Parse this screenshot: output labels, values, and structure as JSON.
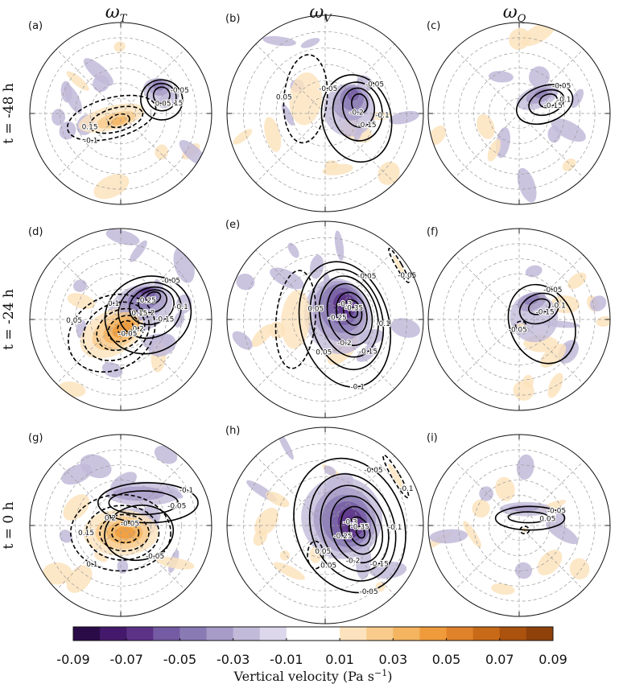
{
  "chart_data": {
    "type": "heatmap",
    "projection": "polar",
    "column_headers": [
      {
        "base": "ω",
        "sub": "T"
      },
      {
        "base": "ω",
        "sub": "V"
      },
      {
        "base": "ω",
        "sub": "Q"
      }
    ],
    "row_labels": [
      "t = -48 h",
      "t = -24 h",
      "t = 0 h"
    ],
    "panels": [
      {
        "id": "a",
        "label": "(a)",
        "row": 0,
        "col": 0,
        "contours": [
          {
            "value": -0.05,
            "dashed": false,
            "cx": 0.45,
            "cy": -0.15,
            "rx": 0.23,
            "ry": 0.22,
            "rot": 10
          },
          {
            "value": -0.1,
            "dashed": false,
            "cx": 0.45,
            "cy": -0.18,
            "rx": 0.16,
            "ry": 0.15,
            "rot": 10
          },
          {
            "value": -0.15,
            "dashed": false,
            "cx": 0.45,
            "cy": -0.2,
            "rx": 0.09,
            "ry": 0.09,
            "rot": 10
          },
          {
            "value": 0.05,
            "dashed": true,
            "cx": -0.1,
            "cy": 0.05,
            "rx": 0.5,
            "ry": 0.22,
            "rot": -15
          },
          {
            "value": 0.1,
            "dashed": true,
            "cx": -0.05,
            "cy": 0.07,
            "rx": 0.3,
            "ry": 0.13,
            "rot": -15
          },
          {
            "value": 0.15,
            "dashed": true,
            "cx": -0.02,
            "cy": 0.08,
            "rx": 0.12,
            "ry": 0.07,
            "rot": -15
          }
        ],
        "labels": [
          "-0.05",
          "0.15",
          "0.05",
          "-0.1",
          "0.15"
        ]
      },
      {
        "id": "b",
        "label": "(b)",
        "row": 0,
        "col": 1,
        "contours": [
          {
            "value": -0.05,
            "dashed": false,
            "cx": 0.32,
            "cy": 0.05,
            "rx": 0.35,
            "ry": 0.45,
            "rot": -15
          },
          {
            "value": -0.1,
            "dashed": false,
            "cx": 0.33,
            "cy": -0.02,
            "rx": 0.25,
            "ry": 0.3,
            "rot": -10
          },
          {
            "value": -0.15,
            "dashed": false,
            "cx": 0.34,
            "cy": -0.06,
            "rx": 0.16,
            "ry": 0.2,
            "rot": -10
          },
          {
            "value": -0.2,
            "dashed": false,
            "cx": 0.35,
            "cy": -0.1,
            "rx": 0.08,
            "ry": 0.1,
            "rot": -10
          },
          {
            "value": 0.05,
            "dashed": true,
            "cx": -0.2,
            "cy": -0.15,
            "rx": 0.22,
            "ry": 0.45,
            "rot": 5
          }
        ],
        "labels": [
          "-0.05",
          "-0.1",
          "-0.15",
          "-0.2",
          "0.05",
          "-0.05"
        ]
      },
      {
        "id": "c",
        "label": "(c)",
        "row": 0,
        "col": 2,
        "contours": [
          {
            "value": -0.05,
            "dashed": false,
            "cx": 0.28,
            "cy": -0.1,
            "rx": 0.32,
            "ry": 0.2,
            "rot": -20
          },
          {
            "value": -0.1,
            "dashed": false,
            "cx": 0.3,
            "cy": -0.12,
            "rx": 0.2,
            "ry": 0.13,
            "rot": -20
          },
          {
            "value": -0.15,
            "dashed": false,
            "cx": 0.32,
            "cy": -0.14,
            "rx": 0.1,
            "ry": 0.07,
            "rot": -20
          }
        ],
        "labels": [
          "-0.05",
          "-0.1",
          "-0.15"
        ]
      },
      {
        "id": "d",
        "label": "(d)",
        "row": 1,
        "col": 0,
        "contours": [
          {
            "value": -0.05,
            "dashed": false,
            "cx": 0.3,
            "cy": -0.05,
            "rx": 0.48,
            "ry": 0.42,
            "rot": -20
          },
          {
            "value": -0.1,
            "dashed": false,
            "cx": 0.32,
            "cy": -0.1,
            "rx": 0.35,
            "ry": 0.3,
            "rot": -20
          },
          {
            "value": -0.15,
            "dashed": false,
            "cx": 0.34,
            "cy": -0.15,
            "rx": 0.25,
            "ry": 0.2,
            "rot": -20
          },
          {
            "value": -0.2,
            "dashed": false,
            "cx": 0.35,
            "cy": -0.2,
            "rx": 0.16,
            "ry": 0.12,
            "rot": -20
          },
          {
            "value": -0.25,
            "dashed": false,
            "cx": 0.36,
            "cy": -0.24,
            "rx": 0.08,
            "ry": 0.06,
            "rot": -20
          },
          {
            "value": 0.05,
            "dashed": true,
            "cx": -0.1,
            "cy": 0.15,
            "rx": 0.5,
            "ry": 0.4,
            "rot": -30
          },
          {
            "value": 0.1,
            "dashed": true,
            "cx": -0.05,
            "cy": 0.13,
            "rx": 0.38,
            "ry": 0.3,
            "rot": -30
          },
          {
            "value": 0.15,
            "dashed": true,
            "cx": 0.0,
            "cy": 0.11,
            "rx": 0.28,
            "ry": 0.21,
            "rot": -30
          },
          {
            "value": 0.2,
            "dashed": true,
            "cx": 0.03,
            "cy": 0.1,
            "rx": 0.18,
            "ry": 0.13,
            "rot": -30
          },
          {
            "value": 0.25,
            "dashed": true,
            "cx": 0.05,
            "cy": 0.09,
            "rx": 0.09,
            "ry": 0.07,
            "rot": -30
          }
        ],
        "labels": [
          "-0.05",
          "-0.1",
          "-0.15",
          "-0.2",
          "-0.25",
          "0.05",
          "0.1",
          "0.15",
          "0.2",
          "-0.05"
        ]
      },
      {
        "id": "e",
        "label": "(e)",
        "row": 1,
        "col": 1,
        "contours": [
          {
            "value": -0.05,
            "dashed": false,
            "cx": 0.2,
            "cy": 0.05,
            "rx": 0.45,
            "ry": 0.65,
            "rot": -15
          },
          {
            "value": -0.1,
            "dashed": false,
            "cx": 0.22,
            "cy": 0.0,
            "rx": 0.36,
            "ry": 0.52,
            "rot": -15
          },
          {
            "value": -0.15,
            "dashed": false,
            "cx": 0.24,
            "cy": -0.03,
            "rx": 0.29,
            "ry": 0.42,
            "rot": -15
          },
          {
            "value": -0.2,
            "dashed": false,
            "cx": 0.25,
            "cy": -0.05,
            "rx": 0.22,
            "ry": 0.32,
            "rot": -15
          },
          {
            "value": -0.25,
            "dashed": false,
            "cx": 0.27,
            "cy": -0.06,
            "rx": 0.15,
            "ry": 0.22,
            "rot": -15
          },
          {
            "value": -0.3,
            "dashed": false,
            "cx": 0.28,
            "cy": -0.07,
            "rx": 0.09,
            "ry": 0.13,
            "rot": -15
          },
          {
            "value": -0.35,
            "dashed": false,
            "cx": 0.29,
            "cy": -0.07,
            "rx": 0.04,
            "ry": 0.05,
            "rot": -15
          },
          {
            "value": 0.05,
            "dashed": true,
            "cx": -0.3,
            "cy": 0.0,
            "rx": 0.2,
            "ry": 0.5,
            "rot": 5
          },
          {
            "value": 0.05,
            "dashed": true,
            "cx": 0.75,
            "cy": -0.55,
            "rx": 0.03,
            "ry": 0.2,
            "rot": -30
          }
        ],
        "labels": [
          "-0.05",
          "-0.1",
          "-0.15",
          "-0.2",
          "-0.25",
          "-0.3",
          "-0.35",
          "0.05",
          "-0.05",
          "-0.1",
          "0.05"
        ]
      },
      {
        "id": "f",
        "label": "(f)",
        "row": 1,
        "col": 2,
        "contours": [
          {
            "value": -0.05,
            "dashed": false,
            "cx": 0.25,
            "cy": 0.05,
            "rx": 0.35,
            "ry": 0.45,
            "rot": -25
          },
          {
            "value": -0.1,
            "dashed": false,
            "cx": 0.22,
            "cy": -0.12,
            "rx": 0.22,
            "ry": 0.16,
            "rot": -20
          },
          {
            "value": -0.15,
            "dashed": false,
            "cx": 0.22,
            "cy": -0.14,
            "rx": 0.12,
            "ry": 0.08,
            "rot": -20
          },
          {
            "value": 0.05,
            "dashed": true,
            "cx": 0.02,
            "cy": 0.07,
            "rx": 0.06,
            "ry": 0.05,
            "rot": 0
          }
        ],
        "labels": [
          "-0.05",
          "-0.1",
          "-0.15",
          "-0.05"
        ]
      },
      {
        "id": "g",
        "label": "(g)",
        "row": 2,
        "col": 0,
        "contours": [
          {
            "value": -0.05,
            "dashed": false,
            "cx": 0.3,
            "cy": -0.25,
            "rx": 0.55,
            "ry": 0.22,
            "rot": 0
          },
          {
            "value": -0.1,
            "dashed": false,
            "cx": 0.25,
            "cy": -0.25,
            "rx": 0.38,
            "ry": 0.13,
            "rot": 0
          },
          {
            "value": -0.05,
            "dashed": false,
            "cx": 0.2,
            "cy": 0.08,
            "rx": 0.38,
            "ry": 0.3,
            "rot": -10
          },
          {
            "value": 0.05,
            "dashed": true,
            "cx": 0.0,
            "cy": 0.08,
            "rx": 0.55,
            "ry": 0.42,
            "rot": 0
          },
          {
            "value": 0.1,
            "dashed": true,
            "cx": 0.02,
            "cy": 0.08,
            "rx": 0.4,
            "ry": 0.3,
            "rot": 0
          },
          {
            "value": 0.15,
            "dashed": true,
            "cx": 0.04,
            "cy": 0.08,
            "rx": 0.27,
            "ry": 0.2,
            "rot": 0
          },
          {
            "value": 0.2,
            "dashed": true,
            "cx": 0.05,
            "cy": 0.08,
            "rx": 0.15,
            "ry": 0.11,
            "rot": 0
          }
        ],
        "labels": [
          "-0.1",
          "-0.05",
          "-0.05",
          "0.1",
          "0.15",
          "0.2",
          "-0.05"
        ]
      },
      {
        "id": "h",
        "label": "(h)",
        "row": 2,
        "col": 1,
        "contours": [
          {
            "value": -0.05,
            "dashed": false,
            "cx": 0.25,
            "cy": 0.0,
            "rx": 0.55,
            "ry": 0.7,
            "rot": -20
          },
          {
            "value": -0.1,
            "dashed": false,
            "cx": 0.28,
            "cy": 0.02,
            "rx": 0.42,
            "ry": 0.56,
            "rot": -20
          },
          {
            "value": -0.15,
            "dashed": false,
            "cx": 0.3,
            "cy": 0.03,
            "rx": 0.33,
            "ry": 0.45,
            "rot": -20
          },
          {
            "value": -0.2,
            "dashed": false,
            "cx": 0.32,
            "cy": 0.04,
            "rx": 0.25,
            "ry": 0.35,
            "rot": -20
          },
          {
            "value": -0.25,
            "dashed": false,
            "cx": 0.34,
            "cy": 0.05,
            "rx": 0.17,
            "ry": 0.25,
            "rot": -20
          },
          {
            "value": -0.3,
            "dashed": false,
            "cx": 0.35,
            "cy": 0.06,
            "rx": 0.1,
            "ry": 0.15,
            "rot": -20
          },
          {
            "value": -0.35,
            "dashed": false,
            "cx": 0.36,
            "cy": 0.07,
            "rx": 0.04,
            "ry": 0.06,
            "rot": -20
          },
          {
            "value": 0.05,
            "dashed": true,
            "cx": -0.1,
            "cy": 0.3,
            "rx": 0.08,
            "ry": 0.14,
            "rot": 0
          },
          {
            "value": 0.05,
            "dashed": true,
            "cx": 0.72,
            "cy": -0.5,
            "rx": 0.04,
            "ry": 0.25,
            "rot": -30
          }
        ],
        "labels": [
          "-0.05",
          "-0.1",
          "-0.15",
          "-0.2",
          "-0.25",
          "-0.3",
          "-0.35",
          "0.05",
          "-0.1",
          "-0.05",
          "0.05"
        ]
      },
      {
        "id": "i",
        "label": "(i)",
        "row": 2,
        "col": 2,
        "contours": [
          {
            "value": -0.05,
            "dashed": false,
            "cx": 0.12,
            "cy": -0.08,
            "rx": 0.38,
            "ry": 0.13,
            "rot": 0
          },
          {
            "value": -0.1,
            "dashed": false,
            "cx": 0.1,
            "cy": -0.09,
            "rx": 0.22,
            "ry": 0.06,
            "rot": 0
          },
          {
            "value": 0.05,
            "dashed": true,
            "cx": 0.06,
            "cy": 0.05,
            "rx": 0.05,
            "ry": 0.04,
            "rot": 0
          }
        ],
        "labels": [
          "-0.05",
          "0.05"
        ]
      }
    ],
    "colorbar": {
      "label_text": "Vertical velocity (Pa s",
      "label_unit_exp": "−1",
      "label_close": ")",
      "range": [
        -0.09,
        0.09
      ],
      "step": 0.01,
      "tick_labels": [
        "-0.09",
        "-0.07",
        "-0.05",
        "-0.03",
        "-0.01",
        "0.01",
        "0.03",
        "0.05",
        "0.07",
        "0.09"
      ],
      "colors": [
        "#2b0a48",
        "#44196b",
        "#5c3287",
        "#745ba3",
        "#8a7ab4",
        "#a79cc8",
        "#c2bad9",
        "#dcd7eb",
        "#ffffff",
        "#ffffff",
        "#fce3bd",
        "#f8cb8c",
        "#f4b460",
        "#ef9b3b",
        "#e0822a",
        "#c86a18",
        "#ab520f",
        "#8e420a"
      ]
    },
    "grid": {
      "rings": 5,
      "spokes": 8,
      "dashed": true
    }
  }
}
